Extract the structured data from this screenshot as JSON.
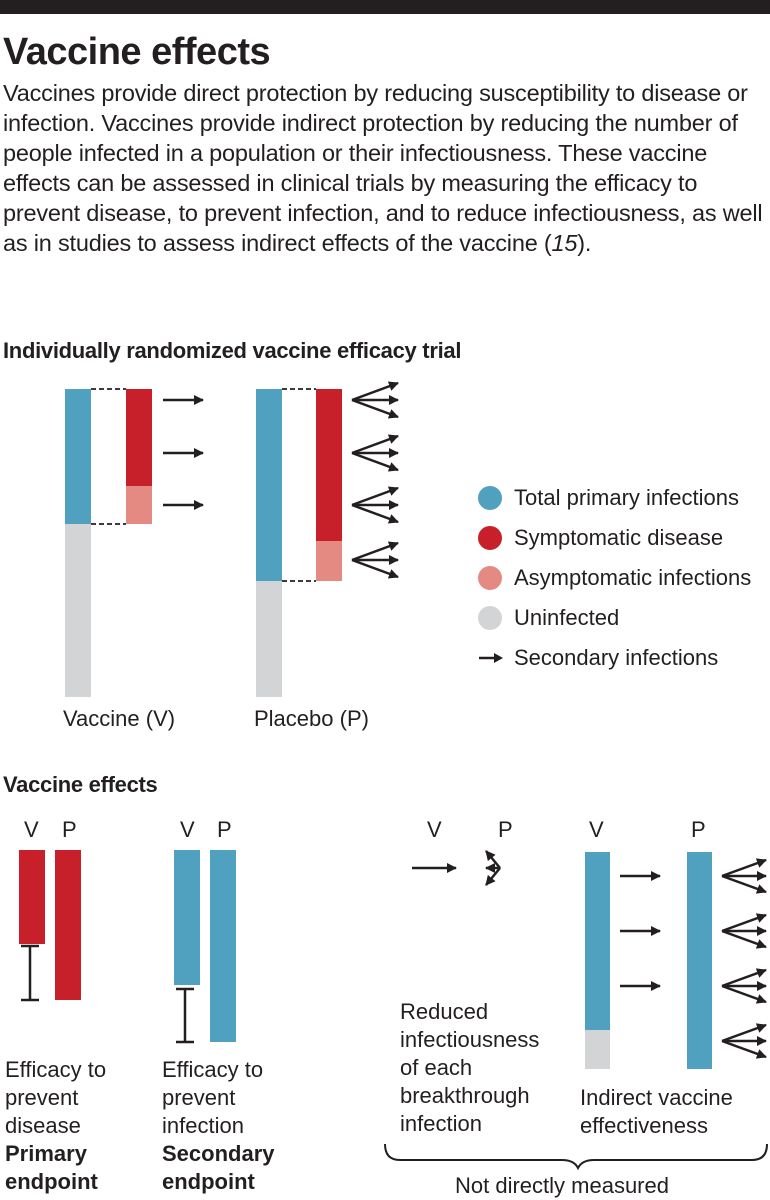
{
  "header": {
    "title": "Vaccine effects",
    "intro_main": "Vaccines provide direct protection by reducing susceptibility to disease or infection. Vaccines provide indirect protection by reducing the number of people infected in a population or their infectiousness. These vaccine effects can be assessed in clinical trials by measuring the efficacy to prevent disease, to prevent infection, and to reduce infectiousness, as well as in studies to assess indirect effects of the vaccine (",
    "intro_ref": "15",
    "intro_end": ")."
  },
  "trial": {
    "title": "Individually randomized vaccine efficacy trial",
    "vaccine_label": "Vaccine (V)",
    "placebo_label": "Placebo (P)"
  },
  "legend": {
    "items": [
      {
        "label": "Total primary infections",
        "color": "#4fa1bf"
      },
      {
        "label": "Symptomatic disease",
        "color": "#c8202a"
      },
      {
        "label": "Asymptomatic infections",
        "color": "#e58a83"
      },
      {
        "label": "Uninfected",
        "color": "#d3d4d6"
      }
    ],
    "arrow_label": "Secondary infections"
  },
  "effects": {
    "title": "Vaccine effects",
    "v": "V",
    "p": "P",
    "disease": {
      "line1": "Efficacy to",
      "line2": "prevent",
      "line3": "disease",
      "bold1": "Primary",
      "bold2": "endpoint"
    },
    "infection": {
      "line1": "Efficacy to",
      "line2": "prevent",
      "line3": "infection",
      "bold1": "Secondary",
      "bold2": "endpoint"
    },
    "infectiousness": {
      "line1": "Reduced",
      "line2": "infectiousness",
      "line3": "of each",
      "line4": "breakthrough",
      "line5": "infection"
    },
    "indirect": {
      "line1": "Indirect vaccine",
      "line2": "effectiveness"
    },
    "not_measured": "Not directly measured"
  },
  "colors": {
    "blue": "#4fa1bf",
    "red": "#c8202a",
    "pink": "#e58a83",
    "gray": "#d3d4d6",
    "ink": "#231f20"
  }
}
